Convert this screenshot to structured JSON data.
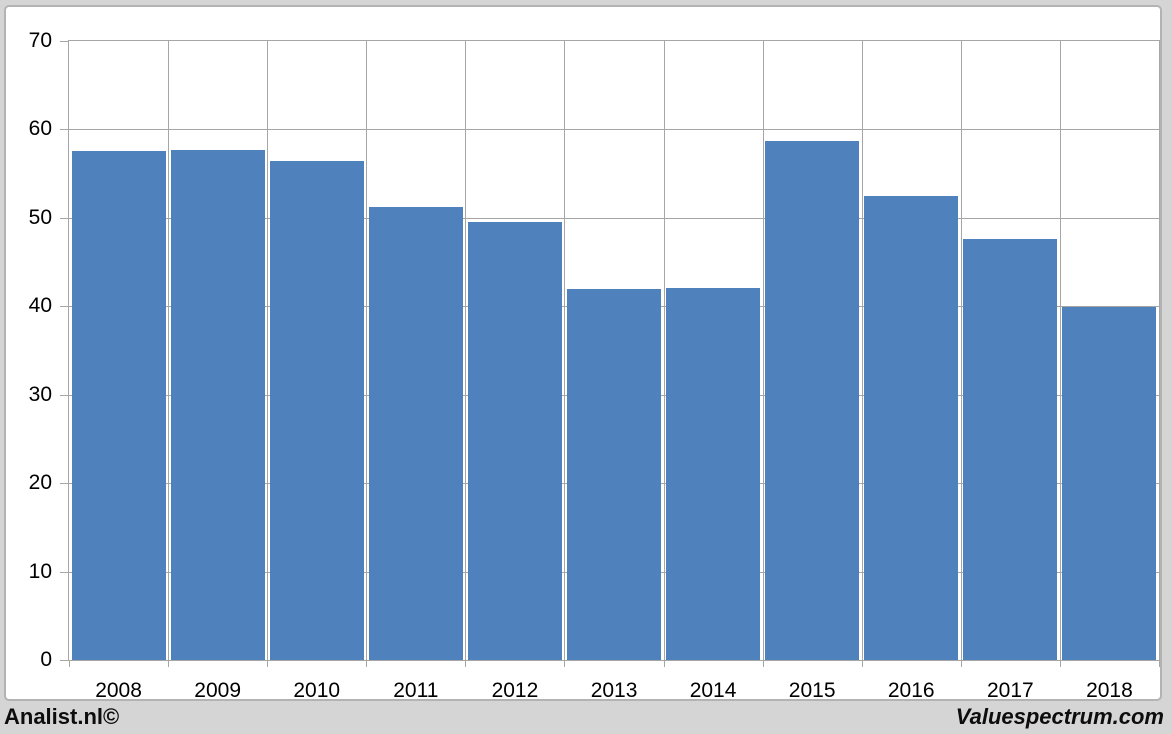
{
  "chart_data": {
    "type": "bar",
    "title": "",
    "xlabel": "",
    "ylabel": "",
    "categories": [
      "2008",
      "2009",
      "2010",
      "2011",
      "2012",
      "2013",
      "2014",
      "2015",
      "2016",
      "2017",
      "2018"
    ],
    "values": [
      57.6,
      57.7,
      56.4,
      51.2,
      49.5,
      42.0,
      42.1,
      58.7,
      52.5,
      47.6,
      39.9
    ],
    "ylim": [
      0,
      70
    ],
    "y_ticks": [
      0,
      10,
      20,
      30,
      40,
      50,
      60,
      70
    ],
    "grid": true,
    "legend": "none"
  },
  "branding": {
    "left": "Analist.nl©",
    "right": "Valuespectrum.com"
  },
  "colors": {
    "bar": "#4f81bd",
    "grid": "#a6a6a6",
    "page_bg": "#d5d5d5",
    "panel_bg": "#ffffff",
    "panel_border": "#b3b3b3",
    "text": "#000000"
  }
}
